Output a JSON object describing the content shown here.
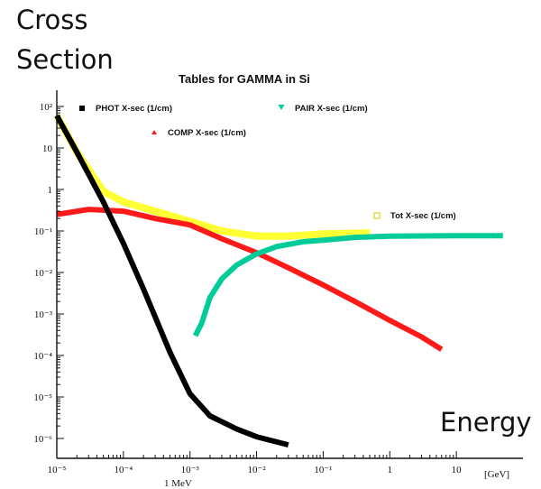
{
  "labels": {
    "y_axis_line1": "Cross",
    "y_axis_line2": "Section",
    "x_axis": "Energy",
    "x_marker": "1 MeV",
    "x_unit": "[GeV]"
  },
  "chart_data": {
    "type": "line",
    "title": "Tables for GAMMA in Si",
    "xlabel": "Energy",
    "ylabel": "Cross Section",
    "x_scale": "log",
    "y_scale": "log",
    "xlim": [
      1e-05,
      100
    ],
    "ylim": [
      1e-06,
      100
    ],
    "grid": false,
    "legend_placement": "top",
    "x_tick_labels": [
      "10⁻⁵",
      "10⁻⁴",
      "10⁻³",
      "10⁻²",
      "10⁻¹",
      "1",
      "10"
    ],
    "y_tick_labels": [
      "10²",
      "10",
      "1",
      "10⁻¹",
      "10⁻²",
      "10⁻³",
      "10⁻⁴",
      "10⁻⁵",
      "10⁻⁶"
    ],
    "series": [
      {
        "name": "PHOT X-sec (1/cm)",
        "color": "#000000",
        "marker": "square",
        "points": [
          [
            1e-05,
            60
          ],
          [
            2e-05,
            8
          ],
          [
            5e-05,
            0.5
          ],
          [
            0.0001,
            0.05
          ],
          [
            0.0002,
            0.004
          ],
          [
            0.0005,
            0.00012
          ],
          [
            0.001,
            1.2e-05
          ],
          [
            0.002,
            3.5e-06
          ],
          [
            0.005,
            1.7e-06
          ],
          [
            0.01,
            1.1e-06
          ],
          [
            0.03,
            7e-07
          ]
        ]
      },
      {
        "name": "COMP X-sec (1/cm)",
        "color": "#ff1a1a",
        "marker": "triangle",
        "points": [
          [
            1e-05,
            0.25
          ],
          [
            3e-05,
            0.33
          ],
          [
            0.0001,
            0.3
          ],
          [
            0.0003,
            0.2
          ],
          [
            0.001,
            0.14
          ],
          [
            0.003,
            0.065
          ],
          [
            0.01,
            0.03
          ],
          [
            0.03,
            0.013
          ],
          [
            0.1,
            0.005
          ],
          [
            0.3,
            0.002
          ],
          [
            1,
            0.0007
          ],
          [
            3,
            0.00028
          ],
          [
            6,
            0.00014
          ]
        ]
      },
      {
        "name": "PAIR X-sec (1/cm)",
        "color": "#00cc99",
        "marker": "triangle-down",
        "points": [
          [
            0.0012,
            0.0003
          ],
          [
            0.0015,
            0.0006
          ],
          [
            0.002,
            0.0025
          ],
          [
            0.003,
            0.007
          ],
          [
            0.005,
            0.015
          ],
          [
            0.01,
            0.028
          ],
          [
            0.02,
            0.042
          ],
          [
            0.05,
            0.055
          ],
          [
            0.1,
            0.06
          ],
          [
            0.3,
            0.07
          ],
          [
            1,
            0.075
          ],
          [
            10,
            0.077
          ],
          [
            50,
            0.077
          ]
        ]
      },
      {
        "name": "Tot X-sec (1/cm)",
        "color": "#ffff33",
        "marker": "open-square",
        "points": [
          [
            1e-05,
            60
          ],
          [
            2e-05,
            8
          ],
          [
            5e-05,
            0.9
          ],
          [
            0.0001,
            0.5
          ],
          [
            0.0003,
            0.3
          ],
          [
            0.001,
            0.17
          ],
          [
            0.003,
            0.1
          ],
          [
            0.01,
            0.075
          ],
          [
            0.03,
            0.075
          ],
          [
            0.1,
            0.085
          ],
          [
            0.5,
            0.09
          ]
        ]
      }
    ]
  }
}
